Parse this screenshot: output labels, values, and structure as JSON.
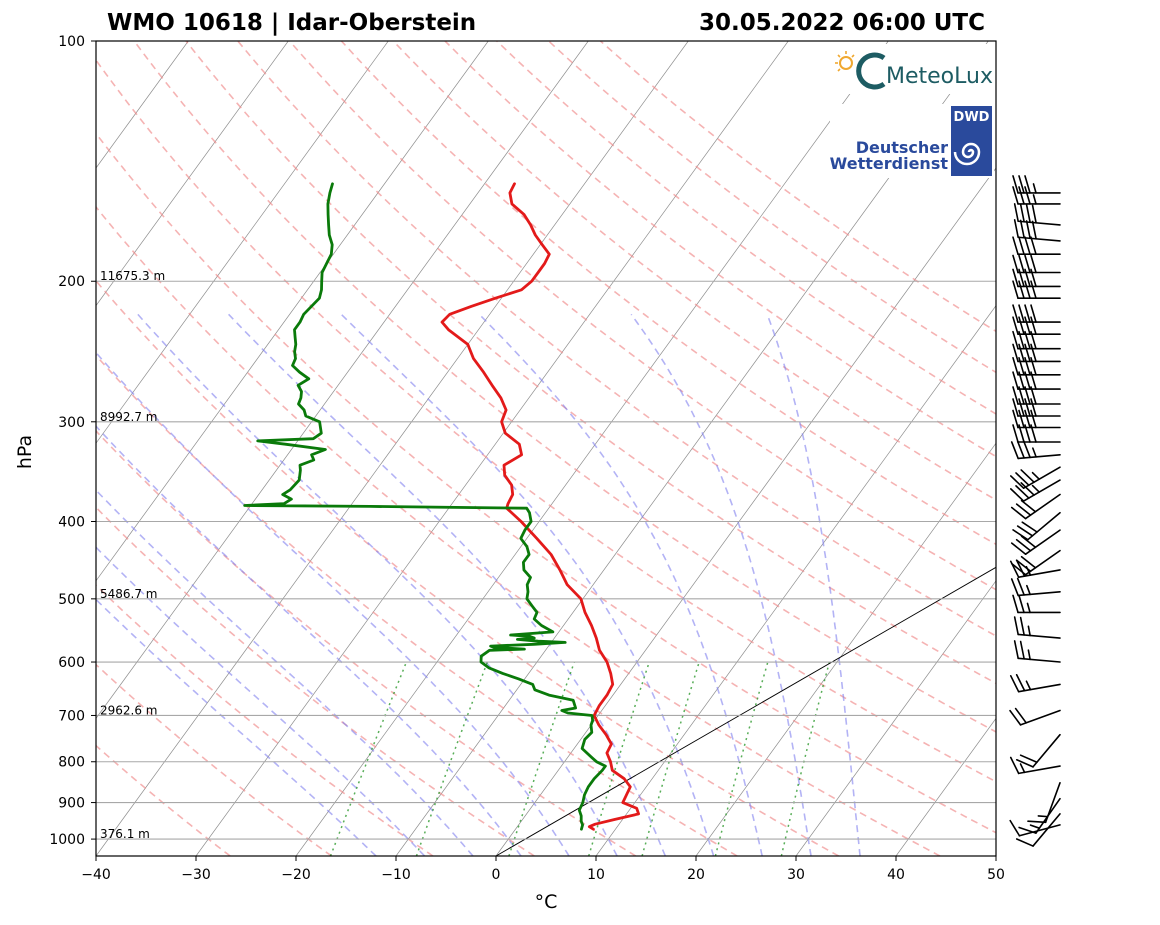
{
  "header": {
    "station": "WMO 10618 | Idar-Oberstein",
    "datetime": "30.05.2022 06:00 UTC"
  },
  "logos": {
    "meteolux": "MeteoLux",
    "dwd_badge": "DWD",
    "dwd_line1": "Deutscher",
    "dwd_line2": "Wetterdienst"
  },
  "chart_data": {
    "type": "line",
    "title": "WMO 10618 | Idar-Oberstein",
    "subtitle": "30.05.2022 06:00 UTC",
    "xlabel": "°C",
    "ylabel": "hPa",
    "xlim": [
      -40,
      50
    ],
    "ylim": [
      1050,
      100
    ],
    "yscale": "log",
    "skew_deg_per_decade": 58,
    "x_ticks": [
      -40,
      -30,
      -20,
      -10,
      0,
      10,
      20,
      30,
      40,
      50
    ],
    "x_tick_labels": [
      "−40",
      "−30",
      "−20",
      "−10",
      "0",
      "10",
      "20",
      "30",
      "40",
      "50"
    ],
    "y_ticks": [
      100,
      200,
      300,
      400,
      500,
      600,
      700,
      800,
      900,
      1000
    ],
    "y_tick_labels": [
      "100",
      "200",
      "300",
      "400",
      "500",
      "600",
      "700",
      "800",
      "900",
      "1000"
    ],
    "height_labels": [
      {
        "p": 200,
        "text": "11675.3 m"
      },
      {
        "p": 300,
        "text": "8992.7 m"
      },
      {
        "p": 500,
        "text": "5486.7 m"
      },
      {
        "p": 700,
        "text": "2962.6 m"
      },
      {
        "p": 1000,
        "text": "376.1 m"
      }
    ],
    "isotherms": [
      -100,
      -90,
      -80,
      -70,
      -60,
      -50,
      -40,
      -30,
      -20,
      -10,
      0,
      10,
      20,
      30,
      40,
      50
    ],
    "dry_adiabats_C": [
      -30,
      -20,
      -10,
      0,
      10,
      20,
      30,
      40,
      50,
      60,
      70,
      80,
      90,
      100,
      110,
      120,
      130,
      140,
      150,
      160
    ],
    "moist_adiabats_C": [
      -15,
      -10,
      -5,
      0,
      5,
      10,
      15,
      20,
      25,
      30,
      35
    ],
    "mixing_ratios_gkg": [
      1,
      2,
      4,
      7,
      10,
      16,
      24
    ],
    "reference_line": {
      "p_bottom": 1050,
      "t_bottom": 0,
      "p_top": 250,
      "t_top": 50
    },
    "series": [
      {
        "name": "Temperature",
        "color": "#e31a1a",
        "points": [
          [
            972,
            7.8
          ],
          [
            965,
            7.2
          ],
          [
            958,
            7.6
          ],
          [
            945,
            9.2
          ],
          [
            930,
            11.2
          ],
          [
            915,
            10.6
          ],
          [
            900,
            8.8
          ],
          [
            880,
            8.6
          ],
          [
            860,
            8.4
          ],
          [
            840,
            7.2
          ],
          [
            820,
            5.4
          ],
          [
            800,
            4.6
          ],
          [
            780,
            3.6
          ],
          [
            760,
            3.4
          ],
          [
            740,
            2.2
          ],
          [
            720,
            0.8
          ],
          [
            700,
            -0.4
          ],
          [
            680,
            -0.6
          ],
          [
            660,
            -0.6
          ],
          [
            640,
            -0.8
          ],
          [
            620,
            -1.8
          ],
          [
            600,
            -3.0
          ],
          [
            580,
            -4.6
          ],
          [
            560,
            -5.8
          ],
          [
            540,
            -7.2
          ],
          [
            520,
            -8.8
          ],
          [
            500,
            -10.2
          ],
          [
            480,
            -12.6
          ],
          [
            460,
            -14.4
          ],
          [
            440,
            -16.4
          ],
          [
            420,
            -19.0
          ],
          [
            400,
            -21.8
          ],
          [
            385,
            -24.2
          ],
          [
            380,
            -24.4
          ],
          [
            370,
            -24.6
          ],
          [
            360,
            -25.4
          ],
          [
            350,
            -26.8
          ],
          [
            340,
            -27.6
          ],
          [
            330,
            -26.6
          ],
          [
            320,
            -27.6
          ],
          [
            310,
            -29.8
          ],
          [
            300,
            -31.0
          ],
          [
            290,
            -31.4
          ],
          [
            280,
            -32.8
          ],
          [
            270,
            -34.6
          ],
          [
            260,
            -36.4
          ],
          [
            250,
            -38.4
          ],
          [
            240,
            -40.0
          ],
          [
            230,
            -43.0
          ],
          [
            225,
            -44.2
          ],
          [
            220,
            -44.0
          ],
          [
            215,
            -42.4
          ],
          [
            210,
            -40.6
          ],
          [
            205,
            -38.6
          ],
          [
            200,
            -38.2
          ],
          [
            195,
            -38.2
          ],
          [
            190,
            -38.2
          ],
          [
            185,
            -38.4
          ],
          [
            180,
            -39.8
          ],
          [
            175,
            -41.2
          ],
          [
            170,
            -42.4
          ],
          [
            165,
            -43.8
          ],
          [
            160,
            -45.8
          ],
          [
            155,
            -46.8
          ],
          [
            151,
            -47.0
          ]
        ]
      },
      {
        "name": "Dewpoint",
        "color": "#0a7a0a",
        "points": [
          [
            972,
            6.6
          ],
          [
            960,
            6.4
          ],
          [
            950,
            6.0
          ],
          [
            935,
            5.6
          ],
          [
            920,
            5.0
          ],
          [
            900,
            4.8
          ],
          [
            880,
            4.4
          ],
          [
            860,
            4.2
          ],
          [
            840,
            4.2
          ],
          [
            820,
            4.4
          ],
          [
            810,
            4.4
          ],
          [
            800,
            3.2
          ],
          [
            790,
            2.4
          ],
          [
            770,
            0.8
          ],
          [
            750,
            0.4
          ],
          [
            735,
            0.6
          ],
          [
            720,
            0.0
          ],
          [
            710,
            -0.2
          ],
          [
            700,
            -0.6
          ],
          [
            695,
            -3.2
          ],
          [
            690,
            -4.0
          ],
          [
            685,
            -2.8
          ],
          [
            670,
            -3.6
          ],
          [
            660,
            -6.4
          ],
          [
            650,
            -8.2
          ],
          [
            640,
            -8.8
          ],
          [
            630,
            -10.6
          ],
          [
            620,
            -12.6
          ],
          [
            610,
            -14.4
          ],
          [
            600,
            -15.6
          ],
          [
            590,
            -16.0
          ],
          [
            580,
            -15.6
          ],
          [
            578,
            -12.2
          ],
          [
            575,
            -15.4
          ],
          [
            573,
            -15.8
          ],
          [
            570,
            -11.6
          ],
          [
            567,
            -8.6
          ],
          [
            565,
            -11.4
          ],
          [
            562,
            -13.6
          ],
          [
            560,
            -12.0
          ],
          [
            557,
            -12.6
          ],
          [
            555,
            -14.6
          ],
          [
            550,
            -10.6
          ],
          [
            540,
            -12.2
          ],
          [
            530,
            -13.4
          ],
          [
            520,
            -13.6
          ],
          [
            510,
            -14.6
          ],
          [
            500,
            -15.6
          ],
          [
            490,
            -16.0
          ],
          [
            480,
            -16.6
          ],
          [
            470,
            -16.8
          ],
          [
            460,
            -18.0
          ],
          [
            450,
            -18.6
          ],
          [
            440,
            -18.6
          ],
          [
            430,
            -19.4
          ],
          [
            420,
            -20.6
          ],
          [
            410,
            -20.8
          ],
          [
            400,
            -20.8
          ],
          [
            390,
            -21.6
          ],
          [
            385,
            -22.2
          ],
          [
            383,
            -38.0
          ],
          [
            382,
            -50.6
          ],
          [
            380,
            -46.8
          ],
          [
            375,
            -46.4
          ],
          [
            370,
            -47.6
          ],
          [
            365,
            -47.2
          ],
          [
            355,
            -47.0
          ],
          [
            345,
            -47.6
          ],
          [
            340,
            -48.0
          ],
          [
            335,
            -47.0
          ],
          [
            330,
            -47.6
          ],
          [
            325,
            -46.6
          ],
          [
            320,
            -51.0
          ],
          [
            318,
            -53.0
          ],
          [
            317,
            -54.0
          ],
          [
            315,
            -48.6
          ],
          [
            310,
            -48.2
          ],
          [
            300,
            -49.2
          ],
          [
            295,
            -51.0
          ],
          [
            290,
            -51.6
          ],
          [
            285,
            -52.6
          ],
          [
            280,
            -52.8
          ],
          [
            275,
            -53.2
          ],
          [
            270,
            -54.0
          ],
          [
            265,
            -53.4
          ],
          [
            260,
            -54.8
          ],
          [
            255,
            -56.0
          ],
          [
            250,
            -56.2
          ],
          [
            245,
            -56.8
          ],
          [
            240,
            -57.2
          ],
          [
            235,
            -57.8
          ],
          [
            230,
            -58.4
          ],
          [
            225,
            -58.4
          ],
          [
            220,
            -58.6
          ],
          [
            215,
            -58.4
          ],
          [
            210,
            -58.2
          ],
          [
            205,
            -58.6
          ],
          [
            200,
            -59.2
          ],
          [
            195,
            -59.8
          ],
          [
            190,
            -60.0
          ],
          [
            185,
            -60.2
          ],
          [
            180,
            -60.8
          ],
          [
            175,
            -61.8
          ],
          [
            170,
            -62.6
          ],
          [
            165,
            -63.4
          ],
          [
            160,
            -64.2
          ],
          [
            155,
            -64.8
          ],
          [
            151,
            -65.2
          ]
        ]
      }
    ],
    "wind_barbs": [
      {
        "p": 155,
        "dir": 270,
        "kt": 35
      },
      {
        "p": 160,
        "dir": 270,
        "kt": 35
      },
      {
        "p": 170,
        "dir": 275,
        "kt": 40
      },
      {
        "p": 178,
        "dir": 275,
        "kt": 40
      },
      {
        "p": 185,
        "dir": 270,
        "kt": 40
      },
      {
        "p": 195,
        "dir": 270,
        "kt": 40
      },
      {
        "p": 203,
        "dir": 270,
        "kt": 40
      },
      {
        "p": 210,
        "dir": 270,
        "kt": 40
      },
      {
        "p": 225,
        "dir": 270,
        "kt": 40
      },
      {
        "p": 233,
        "dir": 270,
        "kt": 40
      },
      {
        "p": 243,
        "dir": 270,
        "kt": 40
      },
      {
        "p": 252,
        "dir": 270,
        "kt": 40
      },
      {
        "p": 262,
        "dir": 270,
        "kt": 40
      },
      {
        "p": 273,
        "dir": 270,
        "kt": 40
      },
      {
        "p": 285,
        "dir": 270,
        "kt": 40
      },
      {
        "p": 295,
        "dir": 270,
        "kt": 40
      },
      {
        "p": 305,
        "dir": 270,
        "kt": 40
      },
      {
        "p": 318,
        "dir": 270,
        "kt": 40
      },
      {
        "p": 330,
        "dir": 265,
        "kt": 35
      },
      {
        "p": 342,
        "dir": 240,
        "kt": 35
      },
      {
        "p": 355,
        "dir": 240,
        "kt": 35
      },
      {
        "p": 370,
        "dir": 235,
        "kt": 30
      },
      {
        "p": 390,
        "dir": 230,
        "kt": 30
      },
      {
        "p": 410,
        "dir": 235,
        "kt": 30
      },
      {
        "p": 435,
        "dir": 235,
        "kt": 30
      },
      {
        "p": 460,
        "dir": 260,
        "kt": 25
      },
      {
        "p": 490,
        "dir": 265,
        "kt": 25
      },
      {
        "p": 520,
        "dir": 270,
        "kt": 25
      },
      {
        "p": 560,
        "dir": 275,
        "kt": 25
      },
      {
        "p": 600,
        "dir": 275,
        "kt": 25
      },
      {
        "p": 640,
        "dir": 260,
        "kt": 25
      },
      {
        "p": 690,
        "dir": 250,
        "kt": 20
      },
      {
        "p": 740,
        "dir": 220,
        "kt": 20
      },
      {
        "p": 810,
        "dir": 260,
        "kt": 15
      },
      {
        "p": 850,
        "dir": 200,
        "kt": 15
      },
      {
        "p": 890,
        "dir": 215,
        "kt": 15
      },
      {
        "p": 930,
        "dir": 220,
        "kt": 10
      },
      {
        "p": 960,
        "dir": 255,
        "kt": 10
      }
    ]
  }
}
